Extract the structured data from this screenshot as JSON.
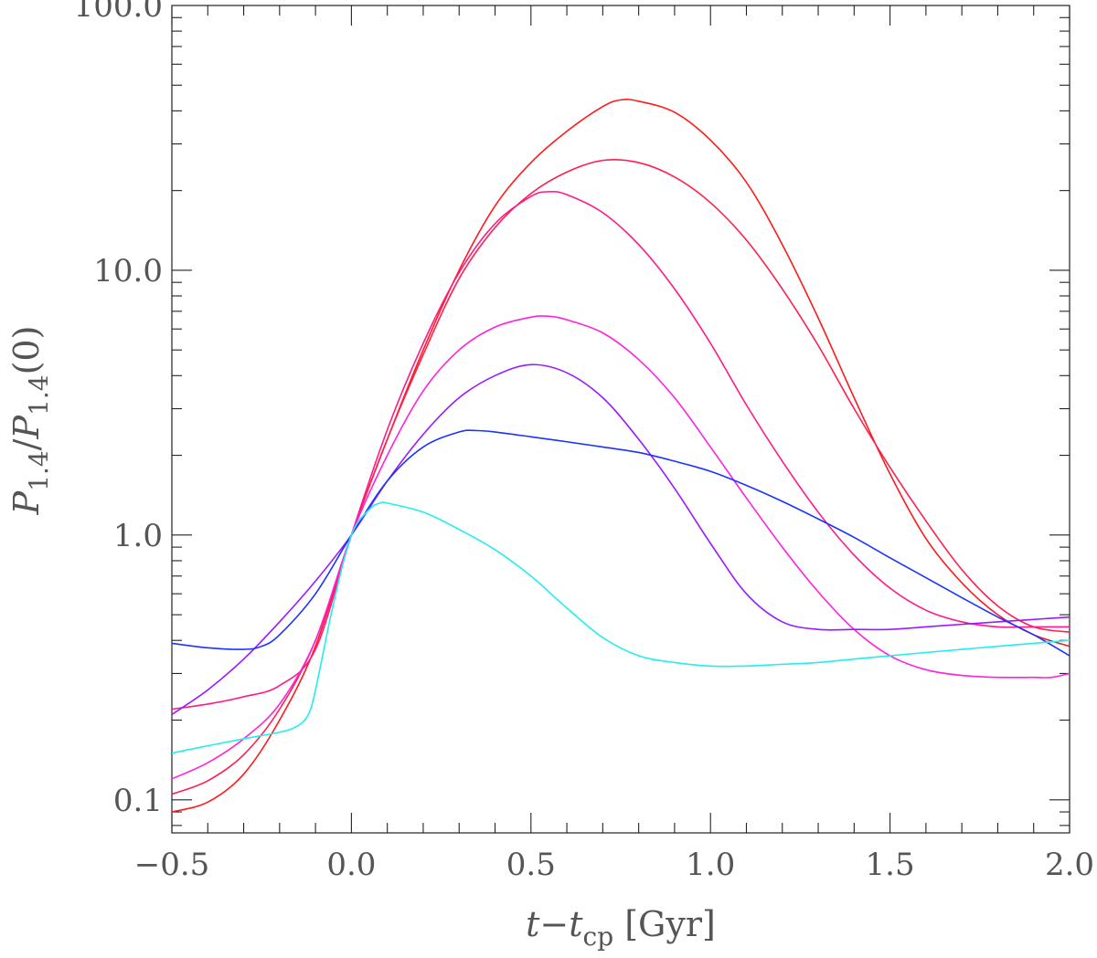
{
  "chart_data": {
    "type": "line",
    "xlabel": "t−t_cp [Gyr]",
    "ylabel": "P_1.4/P_1.4(0)",
    "xlim": [
      -0.5,
      2.0
    ],
    "ylim": [
      0.075,
      100.0
    ],
    "yscale": "log",
    "grid": false,
    "legend": "none",
    "xticks": [
      -0.5,
      0.0,
      0.5,
      1.0,
      1.5,
      2.0
    ],
    "xtick_labels": [
      "−0.5",
      "0.0",
      "0.5",
      "1.0",
      "1.5",
      "2.0"
    ],
    "yticks": [
      0.1,
      1.0,
      10.0,
      100.0
    ],
    "ytick_labels": [
      "0.1",
      "1.0",
      "10.0",
      "100.0"
    ],
    "series": [
      {
        "color": "#ff1a1a",
        "x": [
          -0.5,
          -0.4,
          -0.3,
          -0.2,
          -0.1,
          0.0,
          0.1,
          0.2,
          0.3,
          0.4,
          0.5,
          0.6,
          0.7,
          0.75,
          0.8,
          0.9,
          1.0,
          1.1,
          1.2,
          1.3,
          1.4,
          1.5,
          1.6,
          1.7,
          1.8,
          1.9,
          2.0
        ],
        "y": [
          0.09,
          0.098,
          0.125,
          0.2,
          0.38,
          1.0,
          2.3,
          5.0,
          10.0,
          17.5,
          25.5,
          33.5,
          41.5,
          44.0,
          43.5,
          39.5,
          31.0,
          21.5,
          12.5,
          6.6,
          3.3,
          1.7,
          0.97,
          0.66,
          0.5,
          0.42,
          0.38
        ]
      },
      {
        "color": "#ff1f4f",
        "x": [
          -0.5,
          -0.4,
          -0.3,
          -0.2,
          -0.1,
          0.0,
          0.1,
          0.2,
          0.3,
          0.4,
          0.5,
          0.6,
          0.7,
          0.8,
          0.9,
          1.0,
          1.1,
          1.2,
          1.3,
          1.4,
          1.5,
          1.6,
          1.7,
          1.8,
          1.9,
          2.0
        ],
        "y": [
          0.105,
          0.118,
          0.148,
          0.22,
          0.4,
          1.0,
          2.3,
          4.8,
          9.3,
          14.5,
          19.5,
          23.5,
          26.0,
          25.5,
          22.5,
          18.0,
          13.0,
          8.5,
          5.2,
          3.0,
          1.8,
          1.13,
          0.74,
          0.54,
          0.45,
          0.43
        ]
      },
      {
        "color": "#ff1a88",
        "x": [
          -0.5,
          -0.4,
          -0.3,
          -0.2,
          -0.1,
          0.0,
          0.1,
          0.2,
          0.3,
          0.4,
          0.5,
          0.55,
          0.6,
          0.7,
          0.8,
          0.9,
          1.0,
          1.1,
          1.2,
          1.3,
          1.4,
          1.5,
          1.6,
          1.7,
          1.8,
          1.9,
          2.0
        ],
        "y": [
          0.22,
          0.23,
          0.245,
          0.27,
          0.37,
          1.0,
          2.5,
          5.3,
          9.8,
          15.0,
          19.0,
          19.8,
          19.3,
          16.5,
          12.5,
          8.5,
          5.3,
          3.1,
          1.9,
          1.22,
          0.84,
          0.63,
          0.52,
          0.47,
          0.45,
          0.45,
          0.45
        ]
      },
      {
        "color": "#ff22dd",
        "x": [
          -0.5,
          -0.4,
          -0.3,
          -0.2,
          -0.1,
          0.0,
          0.1,
          0.2,
          0.3,
          0.4,
          0.5,
          0.55,
          0.6,
          0.7,
          0.8,
          0.9,
          1.0,
          1.1,
          1.2,
          1.3,
          1.4,
          1.5,
          1.6,
          1.7,
          1.8,
          1.9,
          1.95,
          2.0
        ],
        "y": [
          0.12,
          0.138,
          0.17,
          0.23,
          0.4,
          1.0,
          2.0,
          3.5,
          5.0,
          6.1,
          6.65,
          6.7,
          6.5,
          5.8,
          4.6,
          3.3,
          2.15,
          1.38,
          0.9,
          0.61,
          0.44,
          0.35,
          0.31,
          0.295,
          0.29,
          0.29,
          0.29,
          0.3
        ]
      },
      {
        "color": "#9a1aff",
        "x": [
          -0.5,
          -0.4,
          -0.3,
          -0.2,
          -0.1,
          0.0,
          0.1,
          0.2,
          0.3,
          0.4,
          0.5,
          0.6,
          0.7,
          0.8,
          0.9,
          1.0,
          1.1,
          1.2,
          1.3,
          1.4,
          1.5,
          1.6,
          1.7,
          1.8,
          1.9,
          2.0
        ],
        "y": [
          0.21,
          0.26,
          0.34,
          0.47,
          0.67,
          1.0,
          1.6,
          2.4,
          3.3,
          4.0,
          4.4,
          4.1,
          3.3,
          2.3,
          1.5,
          0.93,
          0.6,
          0.47,
          0.44,
          0.44,
          0.44,
          0.45,
          0.46,
          0.47,
          0.48,
          0.49
        ]
      },
      {
        "color": "#1a33ff",
        "x": [
          -0.5,
          -0.4,
          -0.3,
          -0.25,
          -0.2,
          -0.1,
          0.0,
          0.1,
          0.2,
          0.3,
          0.35,
          0.4,
          0.5,
          0.6,
          0.7,
          0.8,
          0.9,
          1.0,
          1.1,
          1.2,
          1.3,
          1.4,
          1.5,
          1.6,
          1.7,
          1.8,
          1.9,
          2.0
        ],
        "y": [
          0.39,
          0.375,
          0.37,
          0.38,
          0.42,
          0.6,
          1.0,
          1.6,
          2.15,
          2.45,
          2.48,
          2.45,
          2.35,
          2.25,
          2.15,
          2.05,
          1.9,
          1.74,
          1.54,
          1.34,
          1.15,
          0.98,
          0.82,
          0.69,
          0.58,
          0.49,
          0.42,
          0.35
        ]
      },
      {
        "color": "#22eeee",
        "x": [
          -0.5,
          -0.4,
          -0.3,
          -0.2,
          -0.15,
          -0.12,
          -0.1,
          -0.05,
          0.0,
          0.05,
          0.08,
          0.1,
          0.2,
          0.3,
          0.4,
          0.5,
          0.6,
          0.7,
          0.8,
          0.9,
          1.0,
          1.1,
          1.2,
          1.3,
          1.4,
          1.5,
          1.6,
          1.7,
          1.8,
          1.9,
          2.0
        ],
        "y": [
          0.15,
          0.16,
          0.17,
          0.18,
          0.19,
          0.21,
          0.26,
          0.55,
          1.0,
          1.25,
          1.32,
          1.32,
          1.22,
          1.05,
          0.88,
          0.7,
          0.53,
          0.41,
          0.35,
          0.33,
          0.32,
          0.32,
          0.325,
          0.33,
          0.34,
          0.35,
          0.36,
          0.37,
          0.38,
          0.39,
          0.4
        ]
      }
    ]
  }
}
